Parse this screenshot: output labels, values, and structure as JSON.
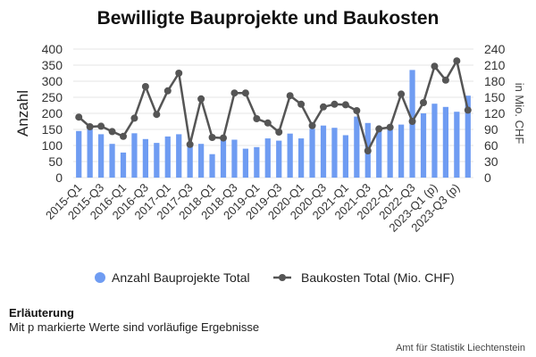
{
  "chart_data": {
    "type": "bar",
    "title": "Bewilligte Bauprojekte und Baukosten",
    "ylabel": "Anzahl",
    "y2label": "in Mio. CHF",
    "ylim": [
      0,
      400
    ],
    "y2lim": [
      0,
      240
    ],
    "yticks": [
      "0",
      "50",
      "100",
      "150",
      "200",
      "250",
      "300",
      "350",
      "400"
    ],
    "y2ticks": [
      "0",
      "30",
      "60",
      "90",
      "120",
      "150",
      "180",
      "210",
      "240"
    ],
    "categories": [
      "2015-Q1",
      "2015-Q2",
      "2015-Q3",
      "2015-Q4",
      "2016-Q1",
      "2016-Q2",
      "2016-Q3",
      "2016-Q4",
      "2017-Q1",
      "2017-Q2",
      "2017-Q3",
      "2017-Q4",
      "2018-Q1",
      "2018-Q2",
      "2018-Q3",
      "2018-Q4",
      "2019-Q1",
      "2019-Q2",
      "2019-Q3",
      "2019-Q4",
      "2020-Q1",
      "2020-Q2",
      "2020-Q3",
      "2020-Q4",
      "2021-Q1",
      "2021-Q2",
      "2021-Q3",
      "2021-Q4",
      "2022-Q1",
      "2022-Q2",
      "2022-Q3",
      "2022-Q4",
      "2023-Q1 (p)",
      "2023-Q2 (p)",
      "2023-Q3 (p)",
      "2023-Q4 (p)"
    ],
    "xtick_labels": [
      "2015-Q1",
      "2015-Q3",
      "2016-Q1",
      "2016-Q3",
      "2017-Q1",
      "2017-Q3",
      "2018-Q1",
      "2018-Q3",
      "2019-Q1",
      "2019-Q3",
      "2020-Q1",
      "2020-Q3",
      "2021-Q1",
      "2021-Q3",
      "2022-Q1",
      "2022-Q3",
      "2023-Q1 (p)",
      "2023-Q3 (p)"
    ],
    "series": [
      {
        "name": "Anzahl Bauprojekte Total",
        "type": "bar",
        "axis": "left",
        "color": "#6f9cf2",
        "values": [
          145,
          155,
          135,
          105,
          78,
          138,
          120,
          108,
          128,
          135,
          105,
          105,
          73,
          125,
          118,
          90,
          95,
          122,
          115,
          137,
          122,
          152,
          162,
          155,
          132,
          190,
          170,
          148,
          150,
          165,
          335,
          200,
          230,
          220,
          205,
          255
        ]
      },
      {
        "name": "Baukosten Total (Mio. CHF)",
        "type": "line",
        "axis": "right",
        "color": "#555555",
        "values": [
          113,
          95,
          96,
          86,
          77,
          111,
          170,
          118,
          162,
          195,
          62,
          147,
          75,
          74,
          158,
          158,
          110,
          102,
          85,
          153,
          137,
          97,
          132,
          137,
          136,
          125,
          50,
          91,
          94,
          156,
          105,
          140,
          208,
          182,
          218,
          126
        ]
      }
    ],
    "legend": "bottom",
    "grid": true
  },
  "note": {
    "title": "Erläuterung",
    "text": "Mit p markierte Werte sind vorläufige Ergebnisse"
  },
  "source": "Amt für Statistik Liechtenstein"
}
